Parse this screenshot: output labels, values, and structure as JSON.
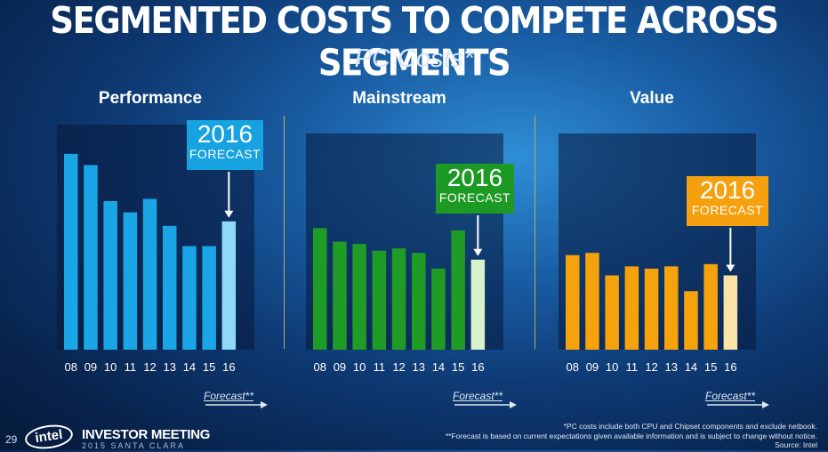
{
  "header": {
    "title": "SEGMENTED COSTS TO COMPETE ACROSS SEGMENTS",
    "subtitle": "PC Costs*"
  },
  "colors": {
    "performance_bar": "#1aa6e6",
    "performance_forecast": "#8fd8f6",
    "performance_callout": "#17a2e0",
    "mainstream_bar": "#1f9c26",
    "mainstream_forecast": "#d6f2cc",
    "mainstream_callout": "#1c9a24",
    "value_bar": "#f6a20c",
    "value_forecast": "#fbe3a8",
    "value_callout": "#f5a10f"
  },
  "chart_data": [
    {
      "type": "bar",
      "title": "Performance",
      "categories": [
        "08",
        "09",
        "10",
        "11",
        "12",
        "13",
        "14",
        "15",
        "16"
      ],
      "values": [
        87,
        82,
        66,
        61,
        67,
        55,
        46,
        46,
        57
      ],
      "forecast_index": 8,
      "callout": {
        "year": "2016",
        "label": "FORECAST"
      },
      "forecast_legend": "Forecast**"
    },
    {
      "type": "bar",
      "title": "Mainstream",
      "categories": [
        "08",
        "09",
        "10",
        "11",
        "12",
        "13",
        "14",
        "15",
        "16"
      ],
      "values": [
        54,
        48,
        47,
        44,
        45,
        43,
        36,
        53,
        40
      ],
      "forecast_index": 8,
      "callout": {
        "year": "2016",
        "label": "FORECAST"
      },
      "forecast_legend": "Forecast**"
    },
    {
      "type": "bar",
      "title": "Value",
      "categories": [
        "08",
        "09",
        "10",
        "11",
        "12",
        "13",
        "14",
        "15",
        "16"
      ],
      "values": [
        42,
        43,
        33,
        37,
        36,
        37,
        26,
        38,
        33
      ],
      "forecast_index": 8,
      "callout": {
        "year": "2016",
        "label": "FORECAST"
      },
      "forecast_legend": "Forecast**"
    }
  ],
  "footer": {
    "page_number": "29",
    "logo_text": "intel",
    "event_title": "INVESTOR MEETING",
    "event_sub": "2015 SANTA CLARA",
    "note1": "*PC costs include both CPU and Chipset components and exclude netbook.",
    "note2": "**Forecast is based on current expectations given available information and is subject to change without notice.",
    "note3": "Source: Intel"
  }
}
